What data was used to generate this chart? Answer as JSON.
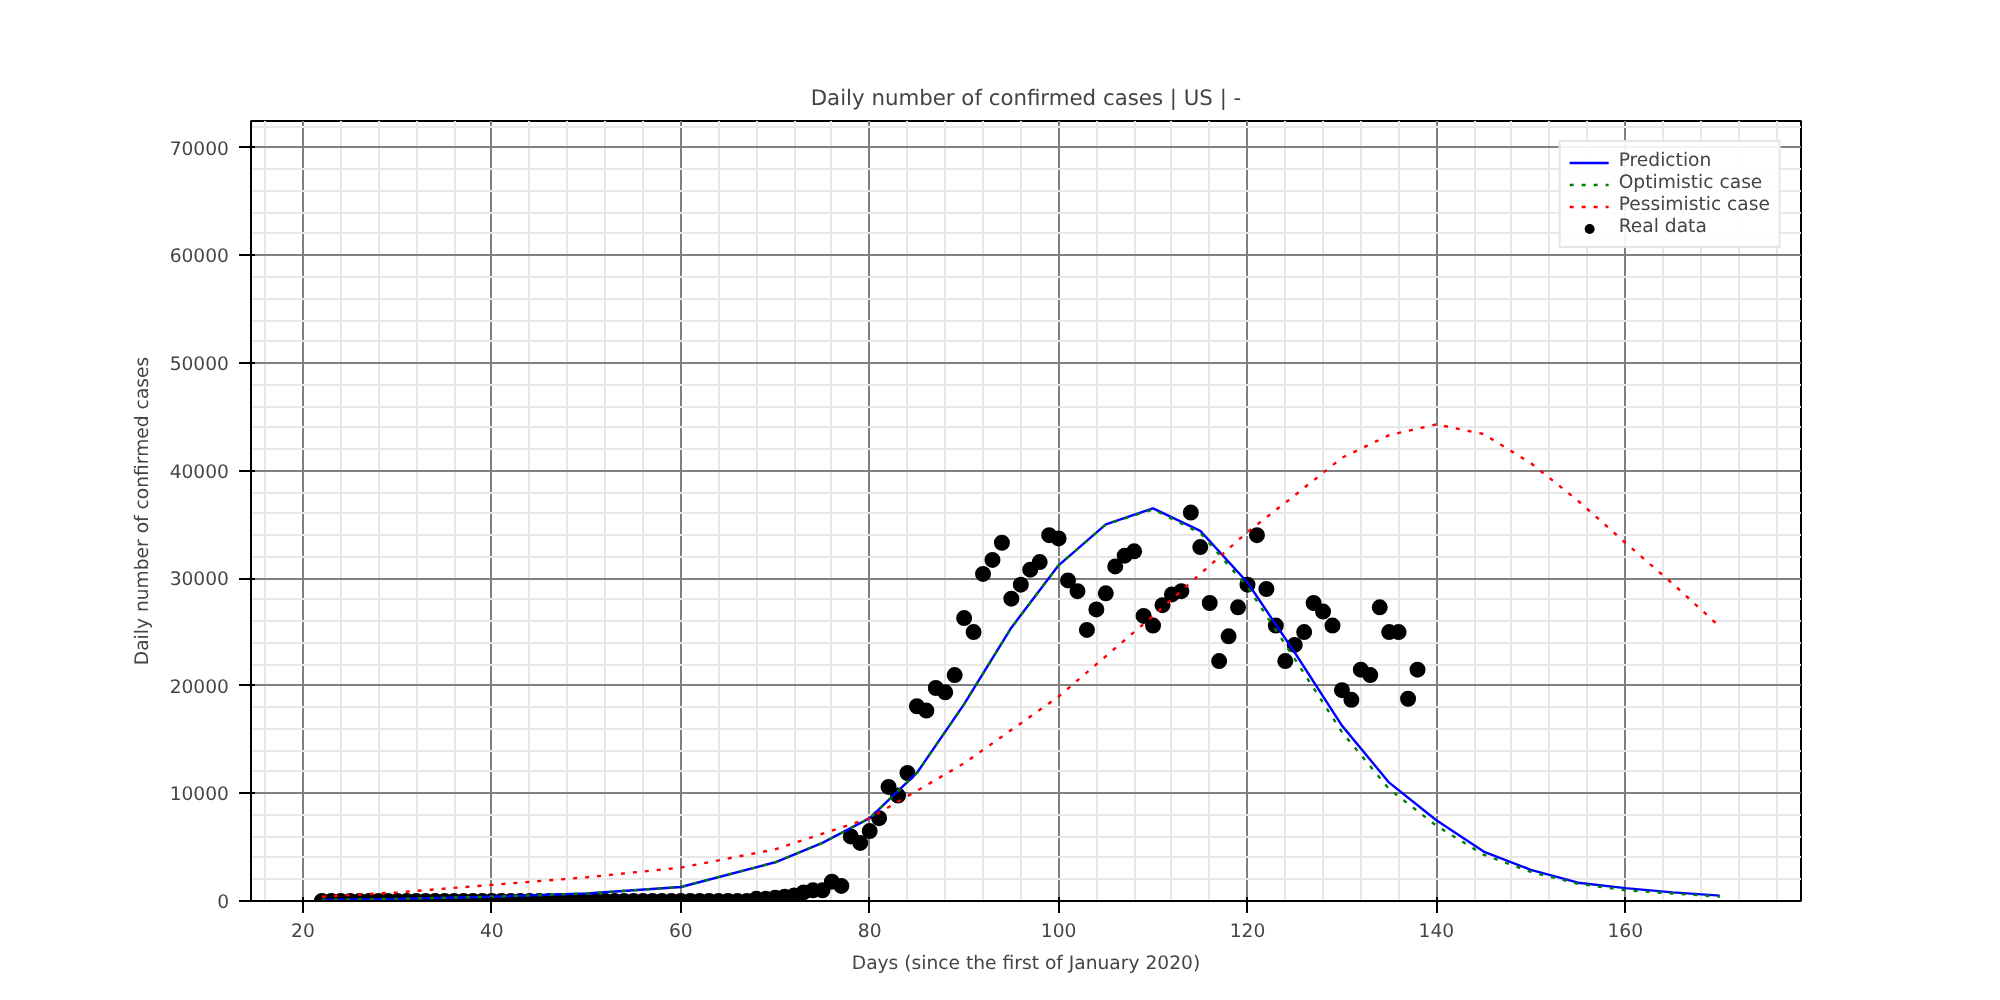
{
  "chart_data": {
    "type": "line",
    "title": "Daily number of confirmed cases | US | -",
    "xlabel": "Days (since the first of January 2020)",
    "ylabel": "Daily number of confirmed cases",
    "xlim": [
      14.5,
      178.6
    ],
    "xticks": [
      20,
      40,
      60,
      80,
      100,
      120,
      140,
      160
    ],
    "ylim": [
      0,
      72500
    ],
    "yticks": [
      0,
      10000,
      20000,
      30000,
      40000,
      50000,
      60000,
      70000
    ],
    "grid": true,
    "legend": "top right",
    "series": [
      {
        "name": "Prediction",
        "color": "#0000ff",
        "line_style": "solid",
        "x": [
          22,
          30,
          40,
          50,
          60,
          70,
          75,
          80,
          85,
          90,
          95,
          100,
          105,
          110,
          115,
          120,
          125,
          130,
          135,
          140,
          145,
          150,
          155,
          160,
          165,
          170
        ],
        "values": [
          100,
          200,
          400,
          700,
          1300,
          3600,
          5400,
          7700,
          11900,
          18300,
          25400,
          31200,
          35000,
          36500,
          34400,
          29600,
          23100,
          16300,
          11000,
          7500,
          4600,
          2900,
          1700,
          1200,
          800,
          500
        ]
      },
      {
        "name": "Optimistic case",
        "color": "#008000",
        "line_style": "dotted",
        "x": [
          22,
          30,
          40,
          50,
          60,
          70,
          75,
          80,
          85,
          90,
          95,
          100,
          105,
          110,
          115,
          120,
          125,
          130,
          135,
          140,
          145,
          150,
          155,
          160,
          165,
          170
        ],
        "values": [
          100,
          200,
          400,
          700,
          1300,
          3600,
          5400,
          7700,
          11900,
          18300,
          25400,
          31200,
          35000,
          36400,
          34200,
          29200,
          22500,
          15700,
          10400,
          7000,
          4300,
          2700,
          1600,
          1000,
          700,
          400
        ]
      },
      {
        "name": "Pessimistic case",
        "color": "#ff0000",
        "line_style": "dotted",
        "x": [
          22,
          30,
          40,
          50,
          60,
          70,
          80,
          90,
          100,
          110,
          120,
          125,
          130,
          135,
          140,
          145,
          150,
          155,
          160,
          165,
          170
        ],
        "values": [
          400,
          800,
          1500,
          2200,
          3100,
          4800,
          7700,
          12800,
          19000,
          26500,
          34300,
          37700,
          41200,
          43300,
          44300,
          43400,
          40700,
          37200,
          33300,
          29500,
          25500
        ]
      },
      {
        "name": "Real data",
        "color": "#000000",
        "type": "scatter",
        "marker": "circle",
        "x": [
          22,
          23,
          24,
          25,
          26,
          27,
          28,
          29,
          30,
          31,
          32,
          33,
          34,
          35,
          36,
          37,
          38,
          39,
          40,
          41,
          42,
          43,
          44,
          45,
          46,
          47,
          48,
          49,
          50,
          51,
          52,
          53,
          54,
          55,
          56,
          57,
          58,
          59,
          60,
          61,
          62,
          63,
          64,
          65,
          66,
          67,
          68,
          69,
          70,
          71,
          72,
          73,
          74,
          75,
          76,
          77,
          78,
          79,
          80,
          81,
          82,
          83,
          84,
          85,
          86,
          87,
          88,
          89,
          90,
          91,
          92,
          93,
          94,
          95,
          96,
          97,
          98,
          99,
          100,
          101,
          102,
          103,
          104,
          105,
          106,
          107,
          108,
          109,
          110,
          111,
          112,
          113,
          114,
          115,
          116,
          117,
          118,
          119,
          120,
          121,
          122,
          123,
          124,
          125,
          126,
          127,
          128,
          129,
          130,
          131,
          132,
          133,
          134,
          135,
          136,
          137,
          138
        ],
        "values": [
          0,
          0,
          0,
          0,
          0,
          0,
          0,
          0,
          0,
          0,
          0,
          0,
          0,
          0,
          0,
          0,
          0,
          0,
          0,
          0,
          0,
          0,
          0,
          0,
          0,
          0,
          0,
          0,
          0,
          0,
          0,
          0,
          0,
          0,
          0,
          0,
          0,
          0,
          0,
          0,
          0,
          0,
          0,
          0,
          0,
          0,
          200,
          200,
          300,
          400,
          500,
          800,
          1000,
          1000,
          1800,
          1400,
          6000,
          5400,
          6500,
          7700,
          10600,
          9800,
          11900,
          18100,
          17700,
          19800,
          19400,
          21000,
          26300,
          25000,
          30400,
          31700,
          33300,
          28100,
          29400,
          30800,
          31500,
          34000,
          33700,
          29800,
          28800,
          25200,
          27100,
          28600,
          31100,
          32100,
          32500,
          26500,
          25600,
          27500,
          28500,
          28800,
          36100,
          32900,
          27700,
          22300,
          24600,
          27300,
          29400,
          34000,
          29000,
          25600,
          22300,
          23800,
          25000,
          27700,
          26900,
          25600,
          19600,
          18700,
          21500,
          21000,
          27300,
          25000,
          25000,
          18800,
          21500
        ]
      }
    ]
  }
}
